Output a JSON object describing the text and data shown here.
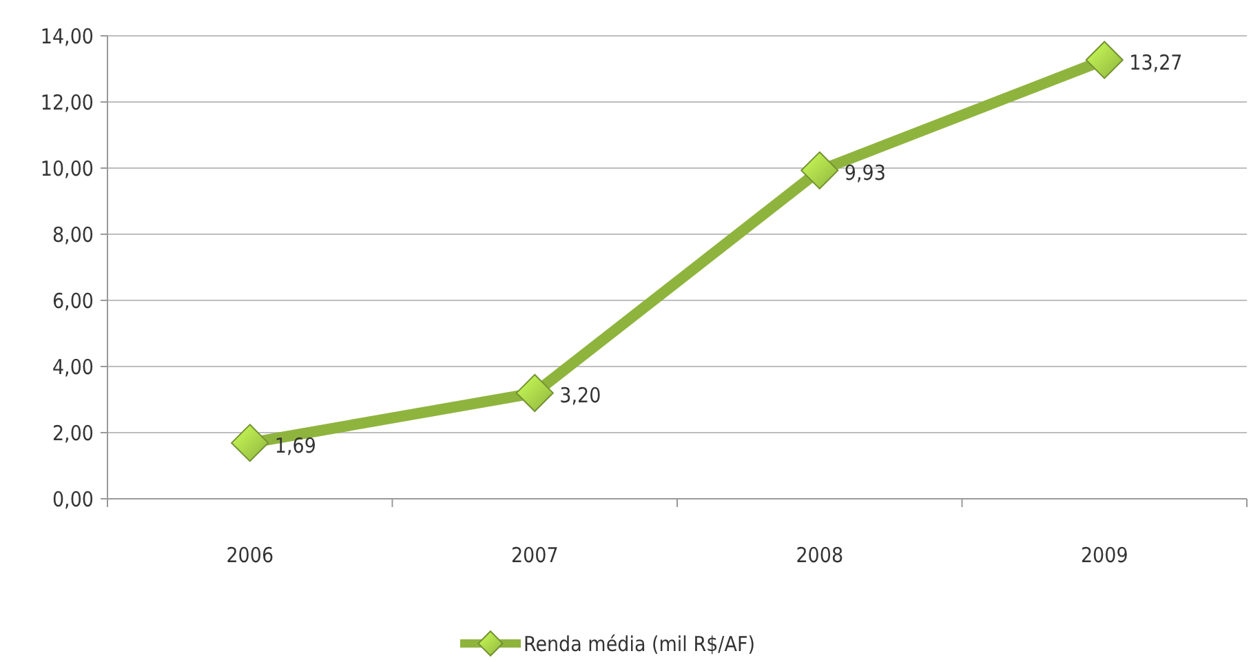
{
  "chart_data": {
    "type": "line",
    "categories": [
      "2006",
      "2007",
      "2008",
      "2009"
    ],
    "series": [
      {
        "name": "Renda média (mil R$/AF)",
        "color": "#8fb43e",
        "values": [
          1.69,
          3.2,
          9.93,
          13.27
        ],
        "value_labels": [
          "1,69",
          "3,20",
          "9,93",
          "13,27"
        ]
      }
    ],
    "ylim": [
      0,
      14
    ],
    "yticks": [
      {
        "value": 0,
        "label": "0,00"
      },
      {
        "value": 2,
        "label": "2,00"
      },
      {
        "value": 4,
        "label": "4,00"
      },
      {
        "value": 6,
        "label": "6,00"
      },
      {
        "value": 8,
        "label": "8,00"
      },
      {
        "value": 10,
        "label": "10,00"
      },
      {
        "value": 12,
        "label": "12,00"
      },
      {
        "value": 14,
        "label": "14,00"
      }
    ],
    "grid": "y",
    "legend": "bottom",
    "marker": "diamond",
    "line_style": "solid"
  }
}
